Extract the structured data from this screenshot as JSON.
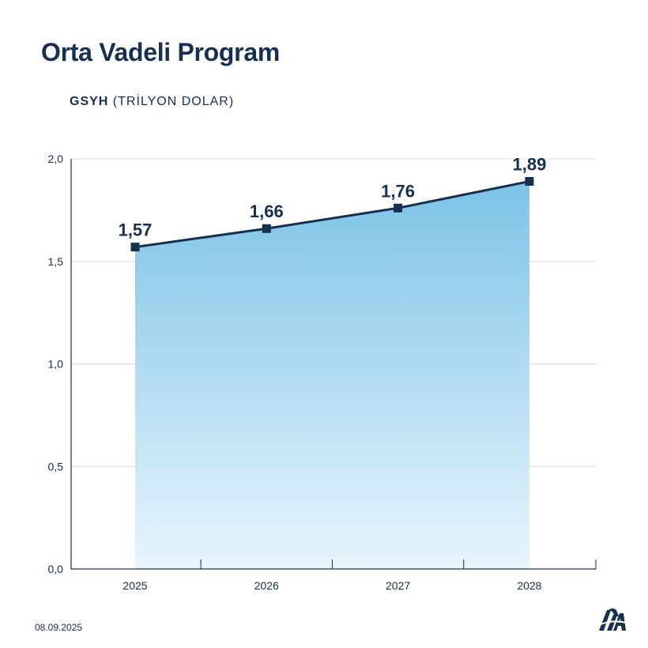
{
  "title": "Orta Vadeli Program",
  "subtitle": {
    "bold": "GSYH",
    "unit": "(TRİLYON DOLAR)"
  },
  "date": "08.09.2025",
  "colors": {
    "line": "#16304f",
    "area_top": "#7cc3e6",
    "area_bottom": "#e8f5fc",
    "grid": "#d9dde3"
  },
  "logo": {
    "icon": "aa-logo-icon"
  },
  "chart_data": {
    "type": "area",
    "title": "Orta Vadeli Program",
    "ylabel": "GSYH (TRİLYON DOLAR)",
    "xlabel": "",
    "categories": [
      "2025",
      "2026",
      "2027",
      "2028"
    ],
    "values": [
      1.57,
      1.66,
      1.76,
      1.89
    ],
    "value_labels": [
      "1,57",
      "1,66",
      "1,76",
      "1,89"
    ],
    "ylim": [
      0,
      2
    ],
    "yticks": [
      0,
      0.5,
      1,
      1.5,
      2
    ],
    "ytick_labels": [
      "0,0",
      "0,5",
      "1,0",
      "1,5",
      "2,0"
    ],
    "grid": true,
    "legend": "none"
  }
}
